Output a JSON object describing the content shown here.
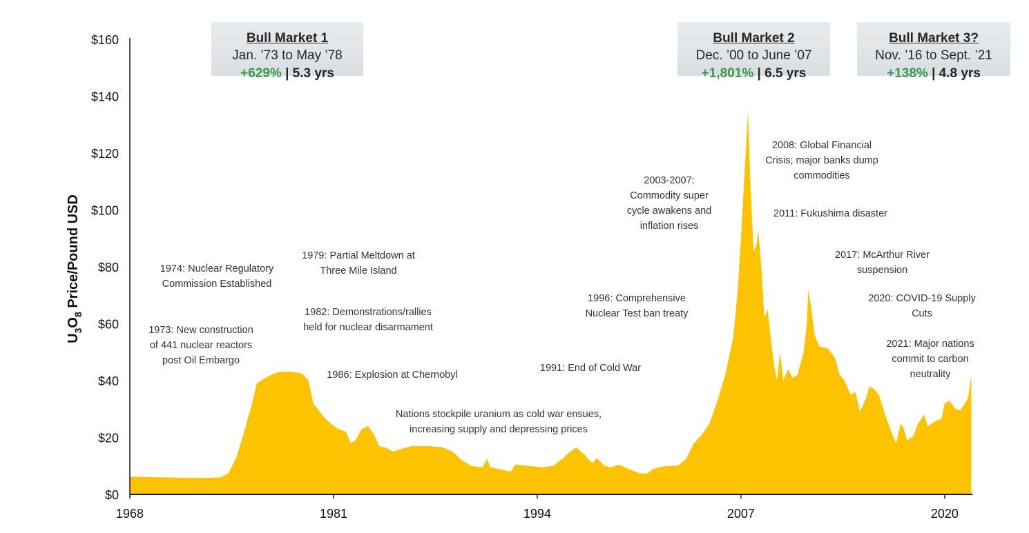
{
  "chart_data": {
    "type": "area",
    "title": "",
    "xlabel": "",
    "ylabel": "U3O8 Price/Pound USD",
    "ylabel_parts": {
      "prefix": "U",
      "sub1": "3",
      "mid": "O",
      "sub2": "8",
      "suffix": " Price/Pound USD"
    },
    "xlim": [
      1968,
      2021.7
    ],
    "ylim": [
      0,
      160
    ],
    "x_ticks": [
      1968,
      1981,
      1994,
      2007,
      2020
    ],
    "x_tick_labels": [
      "1968",
      "1981",
      "1994",
      "2007",
      "2020"
    ],
    "y_ticks": [
      0,
      20,
      40,
      60,
      80,
      100,
      120,
      140,
      160
    ],
    "y_tick_labels": [
      "$0",
      "$20",
      "$40",
      "$60",
      "$80",
      "$100",
      "$120",
      "$140",
      "$160"
    ],
    "grid": false,
    "fill_color": "#fdc300",
    "series": [
      {
        "name": "U3O8 price",
        "points": [
          [
            1968,
            6.2
          ],
          [
            1969,
            6.1
          ],
          [
            1970,
            6.0
          ],
          [
            1971,
            5.9
          ],
          [
            1972,
            5.8
          ],
          [
            1973,
            5.8
          ],
          [
            1973.8,
            6.0
          ],
          [
            1974.3,
            7.5
          ],
          [
            1974.8,
            13
          ],
          [
            1975.3,
            22
          ],
          [
            1975.8,
            32
          ],
          [
            1976.1,
            39
          ],
          [
            1976.5,
            40.5
          ],
          [
            1977,
            42
          ],
          [
            1977.5,
            43
          ],
          [
            1978,
            43.2
          ],
          [
            1978.5,
            43
          ],
          [
            1979,
            42.5
          ],
          [
            1979.4,
            40
          ],
          [
            1979.7,
            32
          ],
          [
            1980,
            30
          ],
          [
            1980.4,
            27
          ],
          [
            1980.8,
            25
          ],
          [
            1981.3,
            23
          ],
          [
            1981.8,
            22
          ],
          [
            1982.1,
            18
          ],
          [
            1982.4,
            19
          ],
          [
            1982.8,
            23
          ],
          [
            1983.2,
            24
          ],
          [
            1983.6,
            21
          ],
          [
            1983.9,
            17
          ],
          [
            1984.3,
            16.5
          ],
          [
            1984.8,
            15
          ],
          [
            1985.3,
            16
          ],
          [
            1986,
            17
          ],
          [
            1987,
            17
          ],
          [
            1988,
            16.5
          ],
          [
            1988.6,
            15
          ],
          [
            1989.2,
            12
          ],
          [
            1989.8,
            10
          ],
          [
            1990.5,
            9.5
          ],
          [
            1990.8,
            12.5
          ],
          [
            1991,
            9.5
          ],
          [
            1991.5,
            9
          ],
          [
            1992.3,
            8
          ],
          [
            1992.6,
            10.5
          ],
          [
            1993.5,
            10
          ],
          [
            1994.3,
            9.5
          ],
          [
            1995,
            10
          ],
          [
            1995.6,
            12.5
          ],
          [
            1996.1,
            15
          ],
          [
            1996.5,
            16.5
          ],
          [
            1997,
            14
          ],
          [
            1997.5,
            11
          ],
          [
            1997.8,
            12.8
          ],
          [
            1998.3,
            10
          ],
          [
            1998.7,
            9.5
          ],
          [
            1999.2,
            10.5
          ],
          [
            1999.8,
            9
          ],
          [
            2000.5,
            7.5
          ],
          [
            2001,
            7.3
          ],
          [
            2001.4,
            9
          ],
          [
            2002,
            9.8
          ],
          [
            2003,
            10.2
          ],
          [
            2003.5,
            12.5
          ],
          [
            2004,
            18
          ],
          [
            2004.5,
            21
          ],
          [
            2005,
            25
          ],
          [
            2005.5,
            33
          ],
          [
            2006,
            42
          ],
          [
            2006.5,
            55
          ],
          [
            2006.8,
            72
          ],
          [
            2007.1,
            100
          ],
          [
            2007.3,
            120
          ],
          [
            2007.45,
            135
          ],
          [
            2007.6,
            110
          ],
          [
            2007.8,
            85
          ],
          [
            2008,
            88
          ],
          [
            2008.1,
            93
          ],
          [
            2008.3,
            80
          ],
          [
            2008.5,
            62
          ],
          [
            2008.7,
            65
          ],
          [
            2008.9,
            55
          ],
          [
            2009.1,
            46
          ],
          [
            2009.3,
            40
          ],
          [
            2009.5,
            50
          ],
          [
            2009.7,
            40
          ],
          [
            2010,
            44
          ],
          [
            2010.3,
            41
          ],
          [
            2010.6,
            42
          ],
          [
            2011,
            50
          ],
          [
            2011.2,
            60
          ],
          [
            2011.3,
            72
          ],
          [
            2011.5,
            65
          ],
          [
            2011.7,
            56
          ],
          [
            2012,
            52
          ],
          [
            2012.5,
            51.5
          ],
          [
            2013,
            48
          ],
          [
            2013.3,
            42
          ],
          [
            2013.6,
            40
          ],
          [
            2014,
            35
          ],
          [
            2014.3,
            36
          ],
          [
            2014.6,
            29
          ],
          [
            2015,
            34
          ],
          [
            2015.2,
            38
          ],
          [
            2015.5,
            37
          ],
          [
            2015.8,
            35
          ],
          [
            2016.2,
            28
          ],
          [
            2016.6,
            22
          ],
          [
            2016.9,
            18
          ],
          [
            2017.2,
            25
          ],
          [
            2017.4,
            23
          ],
          [
            2017.6,
            19
          ],
          [
            2018,
            20.5
          ],
          [
            2018.3,
            25
          ],
          [
            2018.7,
            28
          ],
          [
            2018.9,
            24
          ],
          [
            2019.2,
            25
          ],
          [
            2019.5,
            26
          ],
          [
            2019.8,
            26.5
          ],
          [
            2020,
            32
          ],
          [
            2020.3,
            33
          ],
          [
            2020.7,
            30
          ],
          [
            2021,
            29.5
          ],
          [
            2021.3,
            32
          ],
          [
            2021.5,
            34
          ],
          [
            2021.7,
            42
          ]
        ]
      }
    ],
    "annotations": [
      {
        "year": 1974,
        "text": "1974: Nuclear Regulatory\nCommission Established"
      },
      {
        "year": 1973,
        "text": "1973: New construction\nof 441 nuclear reactors\npost Oil Embargo"
      },
      {
        "year": 1979,
        "text": "1979: Partial Meltdown at\nThree Mile Island"
      },
      {
        "year": 1982,
        "text": "1982: Demonstrations/rallies\nheld for nuclear disarmament"
      },
      {
        "year": 1986,
        "text": "1986: Explosion at Chernobyl"
      },
      {
        "year": null,
        "text": "Nations stockpile uranium as cold war ensues,\nincreasing supply and depressing prices"
      },
      {
        "year": 1991,
        "text": "1991: End of Cold War"
      },
      {
        "year": 1996,
        "text": "1996: Comprehensive\nNuclear Test ban treaty"
      },
      {
        "year": 2003,
        "text": "2003-2007:\nCommodity super\ncycle awakens and\ninflation rises"
      },
      {
        "year": 2008,
        "text": "2008: Global Financial\nCrisis; major banks dump\ncommodities"
      },
      {
        "year": 2011,
        "text": "2011: Fukushima disaster"
      },
      {
        "year": 2017,
        "text": "2017: McArthur River\nsuspension"
      },
      {
        "year": 2020,
        "text": "2020: COVID-19 Supply\nCuts"
      },
      {
        "year": 2021,
        "text": "2021: Major nations\ncommit to carbon\nneutrality"
      }
    ],
    "bull_markets": [
      {
        "title": "Bull Market 1",
        "dates": "Jan. ’73 to May ’78",
        "gain": "+629%",
        "sep": " | ",
        "duration": "5.3 yrs"
      },
      {
        "title": "Bull Market 2",
        "dates": "Dec. ’00 to June ’07",
        "gain": "+1,801%",
        "sep": " | ",
        "duration": "6.5 yrs"
      },
      {
        "title": "Bull Market 3?",
        "dates": "Nov. ’16 to Sept. ’21",
        "gain": "+138%",
        "sep": " | ",
        "duration": "4.8 yrs"
      }
    ],
    "colors": {
      "fill": "#fdc300",
      "gain": "#3a9a4a",
      "box": "#dfe4e8",
      "axis": "#1a1a1a"
    }
  }
}
